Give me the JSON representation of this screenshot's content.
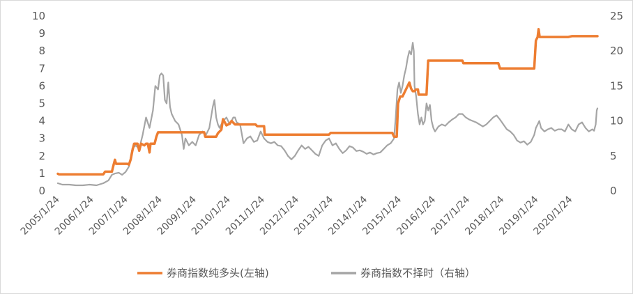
{
  "chart_data": {
    "type": "line",
    "title": "",
    "xlabel": "",
    "ylabel": "",
    "x_ticks": [
      "2005/1/24",
      "2006/1/24",
      "2007/1/24",
      "2008/1/24",
      "2009/1/24",
      "2010/1/24",
      "2011/1/24",
      "2012/1/24",
      "2013/1/24",
      "2014/1/24",
      "2015/1/24",
      "2016/1/24",
      "2017/1/24",
      "2018/1/24",
      "2019/1/24",
      "2020/1/24"
    ],
    "x_range": [
      2005.07,
      2020.85
    ],
    "y_left": {
      "range": [
        0,
        10
      ],
      "ticks": [
        "0",
        "1",
        "2",
        "3",
        "4",
        "5",
        "6",
        "7",
        "8",
        "9",
        "10"
      ]
    },
    "y_right": {
      "range": [
        0,
        25
      ],
      "ticks": [
        "0",
        "5",
        "10",
        "15",
        "20",
        "25"
      ]
    },
    "grid": false,
    "legend_position": "bottom",
    "series": [
      {
        "name": "券商指数纯多头(左轴)",
        "axis": "left",
        "color": "#ED7D31",
        "points": [
          [
            2005.07,
            0.98
          ],
          [
            2005.1,
            0.95
          ],
          [
            2005.9,
            0.95
          ],
          [
            2006.4,
            0.95
          ],
          [
            2006.45,
            1.1
          ],
          [
            2006.65,
            1.1
          ],
          [
            2006.7,
            1.5
          ],
          [
            2006.74,
            1.78
          ],
          [
            2006.77,
            1.55
          ],
          [
            2007.1,
            1.55
          ],
          [
            2007.15,
            1.5
          ],
          [
            2007.2,
            1.8
          ],
          [
            2007.25,
            2.3
          ],
          [
            2007.3,
            2.7
          ],
          [
            2007.4,
            2.7
          ],
          [
            2007.45,
            2.3
          ],
          [
            2007.5,
            2.7
          ],
          [
            2007.6,
            2.6
          ],
          [
            2007.65,
            2.7
          ],
          [
            2007.7,
            2.7
          ],
          [
            2007.75,
            2.2
          ],
          [
            2007.78,
            2.7
          ],
          [
            2007.9,
            2.7
          ],
          [
            2007.95,
            3.1
          ],
          [
            2008.0,
            3.35
          ],
          [
            2008.5,
            3.35
          ],
          [
            2009.35,
            3.35
          ],
          [
            2009.38,
            3.1
          ],
          [
            2009.7,
            3.1
          ],
          [
            2009.75,
            3.3
          ],
          [
            2009.85,
            3.5
          ],
          [
            2009.9,
            4.1
          ],
          [
            2010.0,
            3.75
          ],
          [
            2010.1,
            3.85
          ],
          [
            2010.15,
            4.0
          ],
          [
            2010.25,
            3.8
          ],
          [
            2010.85,
            3.8
          ],
          [
            2010.9,
            3.7
          ],
          [
            2011.1,
            3.7
          ],
          [
            2011.12,
            3.22
          ],
          [
            2013.0,
            3.22
          ],
          [
            2013.05,
            3.32
          ],
          [
            2014.85,
            3.32
          ],
          [
            2014.9,
            3.1
          ],
          [
            2014.98,
            3.1
          ],
          [
            2015.02,
            5.0
          ],
          [
            2015.08,
            5.4
          ],
          [
            2015.15,
            5.4
          ],
          [
            2015.25,
            5.8
          ],
          [
            2015.35,
            6.2
          ],
          [
            2015.4,
            5.85
          ],
          [
            2015.45,
            5.7
          ],
          [
            2015.5,
            5.7
          ],
          [
            2015.52,
            5.75
          ],
          [
            2015.55,
            5.8
          ],
          [
            2015.6,
            5.8
          ],
          [
            2015.62,
            5.5
          ],
          [
            2015.85,
            5.5
          ],
          [
            2015.9,
            7.45
          ],
          [
            2016.9,
            7.45
          ],
          [
            2016.93,
            7.3
          ],
          [
            2017.95,
            7.3
          ],
          [
            2018.0,
            7.0
          ],
          [
            2019.0,
            7.0
          ],
          [
            2019.05,
            8.6
          ],
          [
            2019.1,
            8.8
          ],
          [
            2019.13,
            9.25
          ],
          [
            2019.16,
            8.8
          ],
          [
            2019.2,
            8.8
          ],
          [
            2019.25,
            8.8
          ],
          [
            2020.0,
            8.8
          ],
          [
            2020.1,
            8.85
          ],
          [
            2020.85,
            8.85
          ]
        ]
      },
      {
        "name": "券商指数不择时（右轴）",
        "axis": "right",
        "color": "#A5A5A5",
        "points": [
          [
            2005.07,
            1.1
          ],
          [
            2005.2,
            0.9
          ],
          [
            2005.4,
            0.9
          ],
          [
            2005.6,
            0.8
          ],
          [
            2005.8,
            0.8
          ],
          [
            2006.0,
            0.9
          ],
          [
            2006.2,
            0.8
          ],
          [
            2006.4,
            1.1
          ],
          [
            2006.55,
            1.5
          ],
          [
            2006.65,
            2.3
          ],
          [
            2006.75,
            2.5
          ],
          [
            2006.85,
            2.6
          ],
          [
            2006.95,
            2.3
          ],
          [
            2007.05,
            2.7
          ],
          [
            2007.15,
            3.5
          ],
          [
            2007.25,
            6.1
          ],
          [
            2007.35,
            6.5
          ],
          [
            2007.45,
            6.0
          ],
          [
            2007.55,
            8.0
          ],
          [
            2007.65,
            10.5
          ],
          [
            2007.75,
            9.0
          ],
          [
            2007.85,
            11.5
          ],
          [
            2007.92,
            15.0
          ],
          [
            2008.0,
            14.5
          ],
          [
            2008.05,
            16.5
          ],
          [
            2008.1,
            16.8
          ],
          [
            2008.15,
            16.5
          ],
          [
            2008.2,
            13.0
          ],
          [
            2008.25,
            12.5
          ],
          [
            2008.3,
            15.5
          ],
          [
            2008.35,
            12.0
          ],
          [
            2008.4,
            11.0
          ],
          [
            2008.5,
            10.0
          ],
          [
            2008.6,
            9.5
          ],
          [
            2008.7,
            8.0
          ],
          [
            2008.75,
            6.0
          ],
          [
            2008.8,
            7.5
          ],
          [
            2008.9,
            6.5
          ],
          [
            2009.0,
            7.0
          ],
          [
            2009.1,
            6.5
          ],
          [
            2009.2,
            8.0
          ],
          [
            2009.3,
            8.5
          ],
          [
            2009.4,
            8.0
          ],
          [
            2009.5,
            9.0
          ],
          [
            2009.55,
            10.5
          ],
          [
            2009.6,
            12.0
          ],
          [
            2009.65,
            13.0
          ],
          [
            2009.7,
            10.5
          ],
          [
            2009.75,
            9.5
          ],
          [
            2009.8,
            9.0
          ],
          [
            2009.9,
            10.0
          ],
          [
            2010.0,
            10.5
          ],
          [
            2010.1,
            9.5
          ],
          [
            2010.15,
            10.0
          ],
          [
            2010.2,
            10.5
          ],
          [
            2010.25,
            10.5
          ],
          [
            2010.3,
            9.8
          ],
          [
            2010.4,
            9.5
          ],
          [
            2010.5,
            6.8
          ],
          [
            2010.6,
            7.5
          ],
          [
            2010.7,
            7.8
          ],
          [
            2010.8,
            7.0
          ],
          [
            2010.9,
            7.2
          ],
          [
            2011.0,
            8.5
          ],
          [
            2011.1,
            7.5
          ],
          [
            2011.2,
            7.0
          ],
          [
            2011.3,
            6.8
          ],
          [
            2011.4,
            7.0
          ],
          [
            2011.5,
            6.5
          ],
          [
            2011.6,
            6.4
          ],
          [
            2011.7,
            5.8
          ],
          [
            2011.8,
            5.0
          ],
          [
            2011.9,
            4.5
          ],
          [
            2012.0,
            5.0
          ],
          [
            2012.1,
            5.8
          ],
          [
            2012.2,
            6.5
          ],
          [
            2012.3,
            6.0
          ],
          [
            2012.4,
            6.3
          ],
          [
            2012.5,
            5.8
          ],
          [
            2012.6,
            5.3
          ],
          [
            2012.7,
            5.0
          ],
          [
            2012.8,
            6.5
          ],
          [
            2012.9,
            7.2
          ],
          [
            2013.0,
            7.5
          ],
          [
            2013.1,
            6.5
          ],
          [
            2013.2,
            6.8
          ],
          [
            2013.3,
            6.0
          ],
          [
            2013.4,
            5.4
          ],
          [
            2013.5,
            5.8
          ],
          [
            2013.6,
            6.4
          ],
          [
            2013.7,
            6.2
          ],
          [
            2013.8,
            5.7
          ],
          [
            2013.9,
            5.8
          ],
          [
            2014.0,
            5.6
          ],
          [
            2014.1,
            5.3
          ],
          [
            2014.2,
            5.5
          ],
          [
            2014.3,
            5.2
          ],
          [
            2014.4,
            5.4
          ],
          [
            2014.5,
            5.5
          ],
          [
            2014.6,
            6.0
          ],
          [
            2014.7,
            6.5
          ],
          [
            2014.8,
            6.8
          ],
          [
            2014.9,
            7.5
          ],
          [
            2014.95,
            10.5
          ],
          [
            2015.0,
            14.5
          ],
          [
            2015.05,
            15.5
          ],
          [
            2015.1,
            14.0
          ],
          [
            2015.15,
            15.0
          ],
          [
            2015.2,
            16.5
          ],
          [
            2015.25,
            17.5
          ],
          [
            2015.3,
            19.0
          ],
          [
            2015.35,
            20.0
          ],
          [
            2015.4,
            19.5
          ],
          [
            2015.45,
            21.2
          ],
          [
            2015.48,
            20.0
          ],
          [
            2015.5,
            15.0
          ],
          [
            2015.55,
            13.5
          ],
          [
            2015.6,
            11.0
          ],
          [
            2015.65,
            9.5
          ],
          [
            2015.7,
            10.5
          ],
          [
            2015.75,
            9.5
          ],
          [
            2015.8,
            10.0
          ],
          [
            2015.85,
            12.5
          ],
          [
            2015.9,
            11.5
          ],
          [
            2015.95,
            12.3
          ],
          [
            2016.0,
            10.0
          ],
          [
            2016.05,
            9.0
          ],
          [
            2016.1,
            8.5
          ],
          [
            2016.2,
            9.2
          ],
          [
            2016.3,
            9.5
          ],
          [
            2016.4,
            9.3
          ],
          [
            2016.5,
            9.8
          ],
          [
            2016.6,
            10.2
          ],
          [
            2016.7,
            10.5
          ],
          [
            2016.8,
            11.0
          ],
          [
            2016.9,
            11.0
          ],
          [
            2017.0,
            10.5
          ],
          [
            2017.1,
            10.2
          ],
          [
            2017.2,
            10.0
          ],
          [
            2017.3,
            9.8
          ],
          [
            2017.4,
            9.5
          ],
          [
            2017.5,
            9.2
          ],
          [
            2017.6,
            9.5
          ],
          [
            2017.7,
            10.0
          ],
          [
            2017.8,
            10.5
          ],
          [
            2017.9,
            10.8
          ],
          [
            2018.0,
            10.2
          ],
          [
            2018.1,
            9.5
          ],
          [
            2018.2,
            8.8
          ],
          [
            2018.3,
            8.5
          ],
          [
            2018.4,
            8.0
          ],
          [
            2018.5,
            7.2
          ],
          [
            2018.6,
            6.9
          ],
          [
            2018.7,
            7.1
          ],
          [
            2018.8,
            6.6
          ],
          [
            2018.9,
            7.0
          ],
          [
            2019.0,
            8.0
          ],
          [
            2019.05,
            9.0
          ],
          [
            2019.1,
            9.5
          ],
          [
            2019.15,
            10.0
          ],
          [
            2019.2,
            9.0
          ],
          [
            2019.3,
            8.5
          ],
          [
            2019.4,
            8.8
          ],
          [
            2019.5,
            9.0
          ],
          [
            2019.6,
            8.6
          ],
          [
            2019.7,
            8.8
          ],
          [
            2019.8,
            8.8
          ],
          [
            2019.9,
            8.5
          ],
          [
            2020.0,
            9.5
          ],
          [
            2020.1,
            8.8
          ],
          [
            2020.2,
            8.5
          ],
          [
            2020.3,
            9.5
          ],
          [
            2020.4,
            9.8
          ],
          [
            2020.5,
            9.0
          ],
          [
            2020.6,
            8.5
          ],
          [
            2020.7,
            8.8
          ],
          [
            2020.75,
            8.6
          ],
          [
            2020.8,
            9.5
          ],
          [
            2020.83,
            11.5
          ],
          [
            2020.85,
            11.8
          ]
        ]
      }
    ]
  }
}
